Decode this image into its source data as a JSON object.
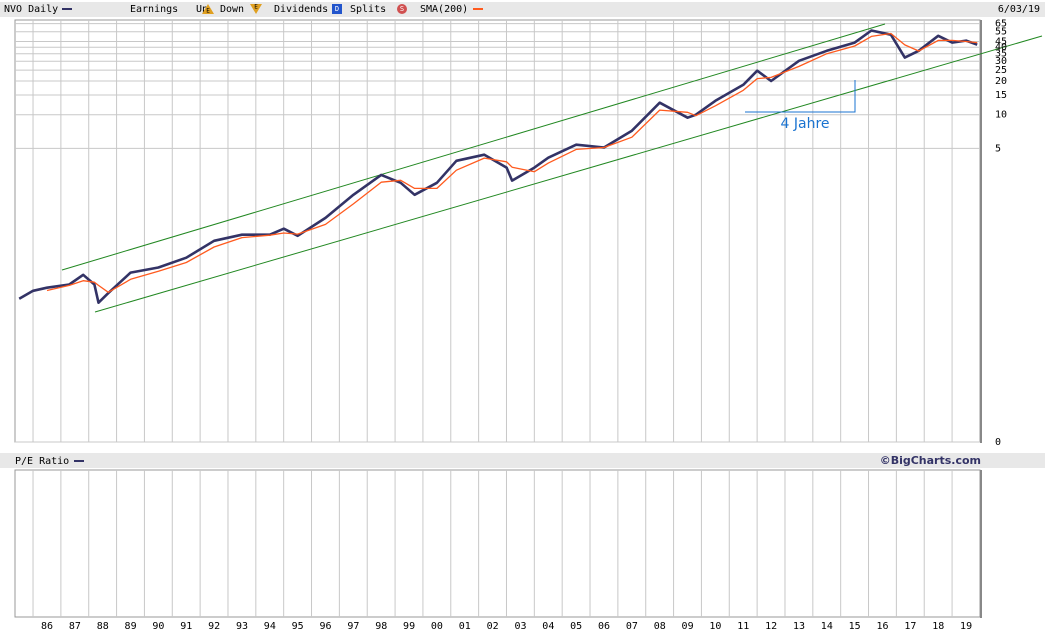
{
  "chart_data": {
    "type": "line",
    "header": {
      "earnings": "Earnings",
      "date": "6/03/19"
    },
    "legend_items": [
      {
        "label": "Up",
        "icon": "E"
      },
      {
        "label": "Down",
        "icon": "E"
      },
      {
        "label": "Dividends",
        "icon": "D"
      },
      {
        "label": "Splits",
        "icon": "S"
      }
    ],
    "annotation": "4 Jahre",
    "lower_panel_title": "P/E Ratio",
    "source": "©BigCharts.com",
    "log_y": true,
    "grid": true,
    "xlim": [
      1984.85,
      2019.5
    ],
    "ylim": [
      0.012,
      70
    ],
    "yticks": [
      65,
      55,
      45,
      40,
      35,
      30,
      25,
      20,
      15,
      10,
      5,
      {
        "value": 0.012,
        "label": "0"
      }
    ],
    "xticks": [
      {
        "value": 1986,
        "label": "86"
      },
      {
        "value": 1987,
        "label": "87"
      },
      {
        "value": 1988,
        "label": "88"
      },
      {
        "value": 1989,
        "label": "89"
      },
      {
        "value": 1990,
        "label": "90"
      },
      {
        "value": 1991,
        "label": "91"
      },
      {
        "value": 1992,
        "label": "92"
      },
      {
        "value": 1993,
        "label": "93"
      },
      {
        "value": 1994,
        "label": "94"
      },
      {
        "value": 1995,
        "label": "95"
      },
      {
        "value": 1996,
        "label": "96"
      },
      {
        "value": 1997,
        "label": "97"
      },
      {
        "value": 1998,
        "label": "98"
      },
      {
        "value": 1999,
        "label": "99"
      },
      {
        "value": 2000,
        "label": "00"
      },
      {
        "value": 2001,
        "label": "01"
      },
      {
        "value": 2002,
        "label": "02"
      },
      {
        "value": 2003,
        "label": "03"
      },
      {
        "value": 2004,
        "label": "04"
      },
      {
        "value": 2005,
        "label": "05"
      },
      {
        "value": 2006,
        "label": "06"
      },
      {
        "value": 2007,
        "label": "07"
      },
      {
        "value": 2008,
        "label": "08"
      },
      {
        "value": 2009,
        "label": "09"
      },
      {
        "value": 2010,
        "label": "10"
      },
      {
        "value": 2011,
        "label": "11"
      },
      {
        "value": 2012,
        "label": "12"
      },
      {
        "value": 2013,
        "label": "13"
      },
      {
        "value": 2014,
        "label": "14"
      },
      {
        "value": 2015,
        "label": "15"
      },
      {
        "value": 2016,
        "label": "16"
      },
      {
        "value": 2017,
        "label": "17"
      },
      {
        "value": 2018,
        "label": "18"
      },
      {
        "value": 2019,
        "label": "19"
      }
    ],
    "x": [
      1985.0,
      1985.5,
      1986.0,
      1986.8,
      1987.3,
      1987.7,
      1987.85,
      1988.2,
      1989.0,
      1990.0,
      1991.0,
      1992.0,
      1993.0,
      1994.0,
      1994.5,
      1995.0,
      1996.0,
      1997.0,
      1998.0,
      1998.7,
      1999.2,
      2000.0,
      2000.7,
      2001.7,
      2002.5,
      2002.7,
      2003.5,
      2004.0,
      2005.0,
      2006.0,
      2007.0,
      2008.0,
      2009.0,
      2009.3,
      2010.0,
      2011.0,
      2011.5,
      2012.0,
      2013.0,
      2014.0,
      2015.0,
      2015.6,
      2016.3,
      2016.8,
      2017.3,
      2018.0,
      2018.5,
      2019.0,
      2019.4
    ],
    "series": [
      {
        "name": "NVO Daily",
        "color": "#333366",
        "values": [
          0.228,
          0.268,
          0.286,
          0.305,
          0.373,
          0.305,
          0.21,
          0.256,
          0.39,
          0.433,
          0.53,
          0.75,
          0.85,
          0.85,
          0.96,
          0.83,
          1.2,
          1.93,
          2.9,
          2.47,
          1.93,
          2.47,
          3.88,
          4.4,
          3.37,
          2.58,
          3.37,
          4.13,
          5.4,
          5.1,
          7.2,
          12.8,
          9.4,
          10,
          13.3,
          18.5,
          24.7,
          20,
          30.3,
          37.2,
          44.0,
          56.4,
          51.8,
          32.3,
          37.2,
          50.6,
          44.0,
          45.8,
          42.1
        ]
      },
      {
        "name": "SMA(200)",
        "color": "#ff5a1e",
        "values": [
          null,
          null,
          0.27,
          0.3,
          0.33,
          0.32,
          0.3,
          0.26,
          0.34,
          0.4,
          0.48,
          0.66,
          0.8,
          0.84,
          0.88,
          0.86,
          1.05,
          1.6,
          2.5,
          2.6,
          2.2,
          2.2,
          3.2,
          4.1,
          3.8,
          3.4,
          3.1,
          3.7,
          4.9,
          5.1,
          6.3,
          11,
          10.5,
          9.8,
          12,
          16.5,
          21,
          21.5,
          27,
          35,
          41,
          50,
          53,
          42,
          37,
          46,
          46,
          45,
          44
        ]
      }
    ]
  }
}
